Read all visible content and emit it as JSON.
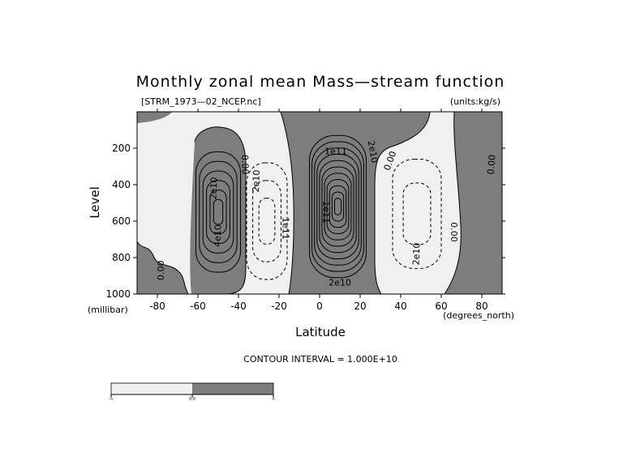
{
  "chart_data": {
    "type": "contour",
    "title": "Monthly zonal mean Mass—stream function",
    "file_label": "[STRM_1973—02_NCEP.nc]",
    "units_label": "(units:kg/s)",
    "xlabel": "Latitude",
    "x_units": "(degrees_north)",
    "ylabel": "Level",
    "y_units": "(millibar)",
    "x_range": [
      -90,
      90
    ],
    "y_range": [
      1000,
      0
    ],
    "x_ticks": [
      -80,
      -60,
      -40,
      -20,
      0,
      20,
      40,
      60,
      80
    ],
    "y_ticks": [
      200,
      400,
      600,
      800,
      1000
    ],
    "contour_interval_text": "CONTOUR INTERVAL = 1.000E+10",
    "contour_interval": 10000000000.0,
    "shading": {
      "negative_color": "#f0f0f0",
      "positive_color": "#7d7d7d"
    },
    "colorbar_labels": [
      "-∞",
      "0.0",
      "∞"
    ],
    "contour_labels": [
      {
        "text": "2e10",
        "lat": -52,
        "level": 420,
        "rotate": -88
      },
      {
        "text": "4e10",
        "lat": -50,
        "level": 680,
        "rotate": -88
      },
      {
        "text": "0.00",
        "lat": -37,
        "level": 290,
        "rotate": 88
      },
      {
        "text": "2e10",
        "lat": -31,
        "level": 380,
        "rotate": -88
      },
      {
        "text": "1e11",
        "lat": -17,
        "level": 640,
        "rotate": 90
      },
      {
        "text": "1e11",
        "lat": 3,
        "level": 550,
        "rotate": 90
      },
      {
        "text": "1e11",
        "lat": 8,
        "level": 220,
        "rotate": 0
      },
      {
        "text": "2e10",
        "lat": 26,
        "level": 220,
        "rotate": 80
      },
      {
        "text": "0.00",
        "lat": 35,
        "level": 270,
        "rotate": -70
      },
      {
        "text": "2e10",
        "lat": 48,
        "level": 780,
        "rotate": -88
      },
      {
        "text": "0.00",
        "lat": 66,
        "level": 660,
        "rotate": 90
      },
      {
        "text": "0.00",
        "lat": 85,
        "level": 290,
        "rotate": -85
      },
      {
        "text": "0.00",
        "lat": -78,
        "level": 870,
        "rotate": -90
      },
      {
        "text": "2e10",
        "lat": 10,
        "level": 940,
        "rotate": 0
      }
    ],
    "cells": [
      {
        "name": "southern-hadley-cell",
        "sign": "negative",
        "center": [
          -50,
          550
        ],
        "half_widths": [
          11,
          330
        ],
        "levels": 6,
        "solid": true
      },
      {
        "name": "southern-ferrel-cell",
        "sign": "positive",
        "center": [
          -26,
          600
        ],
        "half_widths": [
          10,
          320
        ],
        "levels": 3,
        "solid": false
      },
      {
        "name": "winter-hadley-cell",
        "sign": "negative",
        "center": [
          9,
          520
        ],
        "half_widths": [
          14,
          390
        ],
        "levels": 11,
        "solid": true
      },
      {
        "name": "northern-ferrel-cell",
        "sign": "positive",
        "center": [
          48,
          560
        ],
        "half_widths": [
          12,
          300
        ],
        "levels": 2,
        "solid": false
      }
    ]
  }
}
